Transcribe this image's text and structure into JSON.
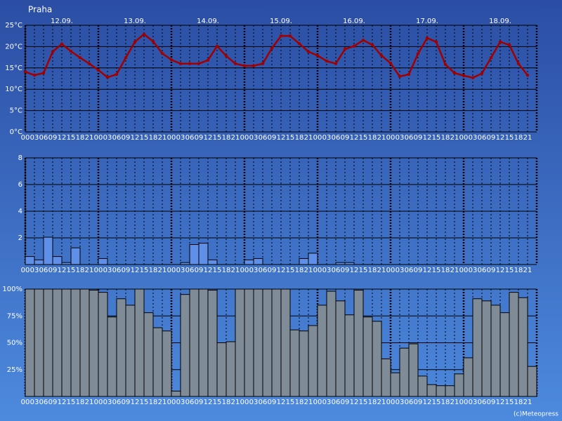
{
  "title": "Praha",
  "credit": "(c)Meteopress",
  "chart_data": [
    {
      "type": "line",
      "color": "#a00000",
      "days": [
        "12.09.",
        "13.09.",
        "14.09.",
        "15.09.",
        "16.09.",
        "17.09.",
        "18.09."
      ],
      "categories": [
        "00",
        "03",
        "06",
        "09",
        "12",
        "15",
        "18",
        "21",
        "00",
        "03",
        "06",
        "09",
        "12",
        "15",
        "18",
        "21",
        "00",
        "03",
        "06",
        "09",
        "12",
        "15",
        "18",
        "21",
        "00",
        "03",
        "06",
        "09",
        "12",
        "15",
        "18",
        "21",
        "00",
        "03",
        "06",
        "09",
        "12",
        "15",
        "18",
        "21",
        "00",
        "03",
        "06",
        "09",
        "12",
        "15",
        "18",
        "21",
        "00",
        "03",
        "06",
        "09",
        "12",
        "15",
        "18",
        "21"
      ],
      "values": [
        14.1,
        13.3,
        13.8,
        18.8,
        20.6,
        18.9,
        17.4,
        16.0,
        14.5,
        12.8,
        13.5,
        17.4,
        21.1,
        22.9,
        21.2,
        18.4,
        16.9,
        16.0,
        16.0,
        16.0,
        16.8,
        20.1,
        17.8,
        16.0,
        15.5,
        15.5,
        16.0,
        19.6,
        22.5,
        22.5,
        20.7,
        18.8,
        17.9,
        16.6,
        16.0,
        19.4,
        20.1,
        21.5,
        20.4,
        17.9,
        16.1,
        13.0,
        13.5,
        18.3,
        22.0,
        21.1,
        15.8,
        13.8,
        13.2,
        12.7,
        13.7,
        17.4,
        21.1,
        20.4,
        16.0,
        13.3
      ],
      "ylim": [
        0,
        25
      ],
      "yticks": [
        {
          "value": 0,
          "label": "0°C"
        },
        {
          "value": 5,
          "label": "5°C"
        },
        {
          "value": 10,
          "label": "10°C"
        },
        {
          "value": 15,
          "label": "15°C"
        },
        {
          "value": 20,
          "label": "20°C"
        },
        {
          "value": 25,
          "label": "25°C"
        }
      ],
      "grid": true
    },
    {
      "type": "bar",
      "color": "#5f8fe8",
      "categories": [
        "00",
        "03",
        "06",
        "09",
        "12",
        "15",
        "18",
        "21",
        "00",
        "03",
        "06",
        "09",
        "12",
        "15",
        "18",
        "21",
        "00",
        "03",
        "06",
        "09",
        "12",
        "15",
        "18",
        "21",
        "00",
        "03",
        "06",
        "09",
        "12",
        "15",
        "18",
        "21",
        "00",
        "03",
        "06",
        "09",
        "12",
        "15",
        "18",
        "21",
        "00",
        "03",
        "06",
        "09",
        "12",
        "15",
        "18",
        "21",
        "00",
        "03",
        "06",
        "09",
        "12",
        "15",
        "18",
        "21"
      ],
      "values": [
        0.6,
        0.35,
        2.05,
        0.6,
        0.15,
        1.25,
        0,
        0,
        0.45,
        0,
        0,
        0,
        0,
        0,
        0,
        0,
        0,
        0.15,
        1.5,
        1.6,
        0.35,
        0,
        0,
        0,
        0.35,
        0.45,
        0,
        0,
        0,
        0,
        0.45,
        0.85,
        0,
        0,
        0.15,
        0.15,
        0,
        0,
        0,
        0,
        0,
        0,
        0,
        0,
        0,
        0,
        0,
        0,
        0,
        0,
        0,
        0,
        0,
        0,
        0,
        0
      ],
      "ylim": [
        0,
        8
      ],
      "yticks": [
        2,
        4,
        6,
        8
      ],
      "grid": true
    },
    {
      "type": "bar",
      "color": "#7f8b97",
      "categories": [
        "00",
        "03",
        "06",
        "09",
        "12",
        "15",
        "18",
        "21",
        "00",
        "03",
        "06",
        "09",
        "12",
        "15",
        "18",
        "21",
        "00",
        "03",
        "06",
        "09",
        "12",
        "15",
        "18",
        "21",
        "00",
        "03",
        "06",
        "09",
        "12",
        "15",
        "18",
        "21",
        "00",
        "03",
        "06",
        "09",
        "12",
        "15",
        "18",
        "21",
        "00",
        "03",
        "06",
        "09",
        "12",
        "15",
        "18",
        "21",
        "00",
        "03",
        "06",
        "09",
        "12",
        "15",
        "18",
        "21"
      ],
      "values": [
        100,
        100,
        100,
        100,
        100,
        100,
        100,
        99,
        97,
        74,
        91,
        85,
        100,
        78,
        64,
        61,
        5,
        95,
        100,
        100,
        99,
        50,
        51,
        100,
        100,
        100,
        100,
        100,
        100,
        62,
        61,
        66,
        85,
        98,
        89,
        76,
        99,
        74,
        70,
        35,
        22,
        45,
        49,
        19,
        11,
        10,
        10,
        21,
        36,
        91,
        89,
        85,
        78,
        97,
        92,
        28
      ],
      "ylim": [
        0,
        100
      ],
      "yticks": [
        {
          "value": 25,
          "label": "25%"
        },
        {
          "value": 50,
          "label": "50%"
        },
        {
          "value": 75,
          "label": "75%"
        },
        {
          "value": 100,
          "label": "100%"
        }
      ],
      "grid": true
    }
  ]
}
